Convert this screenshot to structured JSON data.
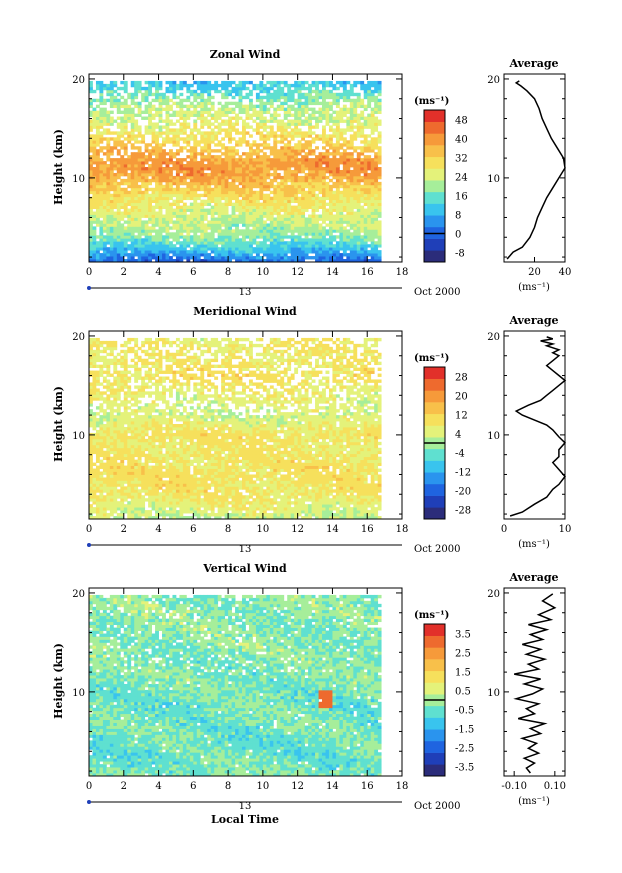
{
  "panels": [
    {
      "title": "Zonal Wind",
      "date_label": "Oct 2000",
      "day_label": "13",
      "xlabel": "",
      "ylabel": "Height (km)",
      "x_ticks": [
        "0",
        "2",
        "4",
        "6",
        "8",
        "10",
        "12",
        "14",
        "16",
        "18"
      ],
      "y_ticks": [
        "10",
        "20"
      ],
      "colorbar_unit": "(ms⁻¹)",
      "colorbar_labels": [
        "-8",
        "0",
        "8",
        "16",
        "24",
        "32",
        "40",
        "48"
      ],
      "avg_title": "Average",
      "avg_xticks": [
        "20",
        "40"
      ],
      "avg_yticks": [
        "10",
        "20"
      ],
      "avg_unit": "(ms⁻¹)"
    },
    {
      "title": "Meridional Wind",
      "date_label": "Oct 2000",
      "day_label": "13",
      "xlabel": "",
      "ylabel": "Height (km)",
      "x_ticks": [
        "0",
        "2",
        "4",
        "6",
        "8",
        "10",
        "12",
        "14",
        "16",
        "18"
      ],
      "y_ticks": [
        "10",
        "20"
      ],
      "colorbar_unit": "(ms⁻¹)",
      "colorbar_labels": [
        "-28",
        "-20",
        "-12",
        "-4",
        "4",
        "12",
        "20",
        "28"
      ],
      "avg_title": "Average",
      "avg_xticks": [
        "0",
        "10"
      ],
      "avg_yticks": [
        "10",
        "20"
      ],
      "avg_unit": "(ms⁻¹)"
    },
    {
      "title": "Vertical Wind",
      "date_label": "Oct 2000",
      "day_label": "13",
      "xlabel": "Local Time",
      "ylabel": "Height (km)",
      "x_ticks": [
        "0",
        "2",
        "4",
        "6",
        "8",
        "10",
        "12",
        "14",
        "16",
        "18"
      ],
      "y_ticks": [
        "10",
        "20"
      ],
      "colorbar_unit": "(ms⁻¹)",
      "colorbar_labels": [
        "-3.5",
        "-2.5",
        "-1.5",
        "-0.5",
        "0.5",
        "1.5",
        "2.5",
        "3.5"
      ],
      "avg_title": "Average",
      "avg_xticks": [
        "-0.10",
        "0.10"
      ],
      "avg_yticks": [
        "10",
        "20"
      ],
      "avg_unit": "(ms⁻¹)"
    }
  ],
  "chart_data": [
    {
      "type": "heatmap",
      "title": "Zonal Wind",
      "xlabel": "",
      "ylabel": "Height (km)",
      "xlim": [
        0,
        18
      ],
      "ylim": [
        1.5,
        20.5
      ],
      "data_extent_x": [
        0,
        16.8
      ],
      "data_extent_y": [
        1.5,
        19.8
      ],
      "colorbar": {
        "unit": "ms-1",
        "min": -12,
        "max": 52,
        "ticks": [
          -8,
          0,
          8,
          16,
          24,
          32,
          40,
          48
        ]
      },
      "profile_by_height": {
        "height_km": [
          1.5,
          2,
          3,
          4,
          5,
          6,
          7,
          8,
          9,
          10,
          11,
          12,
          13,
          14,
          15,
          16,
          17,
          18,
          19,
          19.8
        ],
        "value": [
          0,
          4,
          12,
          18,
          21,
          23,
          26,
          29,
          33,
          37,
          40,
          38,
          33,
          30,
          27,
          24,
          22,
          18,
          13,
          10
        ]
      }
    },
    {
      "type": "line",
      "title": "Average",
      "xlabel": "(ms-1)",
      "ylabel": "",
      "xlim": [
        0,
        40
      ],
      "ylim": [
        1.5,
        20.5
      ],
      "x": [
        2,
        6,
        12,
        17,
        20,
        22,
        25,
        28,
        32,
        36,
        40,
        39,
        35,
        31,
        28,
        25,
        23,
        20,
        15,
        11,
        8,
        10
      ],
      "y": [
        1.8,
        2.5,
        3,
        4,
        5,
        6,
        7,
        8,
        9,
        10,
        11,
        12,
        13,
        14,
        15,
        16,
        17,
        18,
        18.8,
        19.3,
        19.6,
        19.8
      ]
    },
    {
      "type": "heatmap",
      "title": "Meridional Wind",
      "xlabel": "",
      "ylabel": "Height (km)",
      "xlim": [
        0,
        18
      ],
      "ylim": [
        1.5,
        20.5
      ],
      "data_extent_x": [
        0,
        16.8
      ],
      "data_extent_y": [
        1.5,
        19.8
      ],
      "colorbar": {
        "unit": "ms-1",
        "min": -32,
        "max": 32,
        "ticks": [
          -28,
          -20,
          -12,
          -4,
          4,
          12,
          20,
          28
        ]
      },
      "profile_by_height": {
        "height_km": [
          1.5,
          2,
          3,
          4,
          5,
          6,
          7,
          8,
          9,
          10,
          11,
          12,
          13,
          14,
          15,
          16,
          17,
          18,
          19,
          19.8
        ],
        "value": [
          2,
          4,
          6,
          8,
          9,
          9,
          9,
          8,
          8,
          9,
          6,
          3,
          4,
          6,
          8,
          10,
          8,
          7,
          8,
          6
        ]
      }
    },
    {
      "type": "line",
      "title": "Average",
      "xlabel": "(ms-1)",
      "ylabel": "",
      "xlim": [
        0,
        10
      ],
      "ylim": [
        1.5,
        20.5
      ],
      "x": [
        1,
        3,
        5,
        7,
        8,
        9,
        10,
        9,
        8,
        9,
        9,
        10,
        9,
        8,
        7,
        5,
        3,
        2,
        4,
        6,
        7,
        8,
        9,
        10,
        9,
        8,
        7,
        8,
        9,
        8,
        9,
        7,
        8,
        6,
        8,
        7
      ],
      "y": [
        1.8,
        2.2,
        3,
        3.7,
        4.5,
        5,
        5.8,
        6.5,
        7.2,
        7.8,
        8.5,
        9.2,
        9.8,
        10.5,
        11,
        11.5,
        12,
        12.4,
        13,
        13.5,
        14,
        14.5,
        15,
        15.5,
        16,
        16.5,
        17,
        17.5,
        18,
        18.3,
        18.6,
        19,
        19.2,
        19.5,
        19.7,
        19.9
      ]
    },
    {
      "type": "heatmap",
      "title": "Vertical Wind",
      "xlabel": "Local Time",
      "ylabel": "Height (km)",
      "xlim": [
        0,
        18
      ],
      "ylim": [
        1.5,
        20.5
      ],
      "data_extent_x": [
        0,
        16.8
      ],
      "data_extent_y": [
        1.5,
        19.8
      ],
      "colorbar": {
        "unit": "ms-1",
        "min": -4,
        "max": 4,
        "ticks": [
          -3.5,
          -2.5,
          -1.5,
          -0.5,
          0.5,
          1.5,
          2.5,
          3.5
        ]
      },
      "profile_by_height": {
        "height_km": [
          1.5,
          3,
          5,
          7,
          9,
          10,
          11,
          12,
          13,
          15,
          17,
          19,
          19.8
        ],
        "value": [
          -0.3,
          -0.5,
          -0.5,
          -0.4,
          -0.5,
          -0.4,
          -0.3,
          -0.3,
          -0.3,
          -0.2,
          -0.2,
          -0.2,
          -0.2
        ]
      }
    },
    {
      "type": "line",
      "title": "Average",
      "xlabel": "(ms-1)",
      "ylabel": "",
      "xlim": [
        -0.15,
        0.15
      ],
      "ylim": [
        1.5,
        20.5
      ],
      "x": [
        -0.02,
        -0.04,
        0.0,
        -0.05,
        0.02,
        -0.03,
        0.01,
        -0.06,
        0.03,
        -0.02,
        0.05,
        -0.08,
        0.0,
        -0.04,
        0.02,
        -0.09,
        -0.01,
        0.04,
        -0.05,
        0.03,
        -0.1,
        0.02,
        -0.03,
        0.05,
        -0.04,
        0.03,
        -0.06,
        0.04,
        -0.02,
        0.06,
        -0.03,
        0.08,
        0.02,
        0.1,
        0.04,
        0.09
      ],
      "y": [
        1.8,
        2.3,
        2.8,
        3.3,
        3.8,
        4.3,
        4.8,
        5.3,
        5.8,
        6.3,
        6.8,
        7.3,
        7.8,
        8.3,
        8.8,
        9.3,
        9.8,
        10.3,
        10.8,
        11.3,
        11.8,
        12.3,
        12.8,
        13.3,
        13.8,
        14.3,
        14.8,
        15.3,
        15.8,
        16.3,
        16.8,
        17.3,
        17.8,
        18.5,
        19.2,
        19.9
      ]
    }
  ]
}
